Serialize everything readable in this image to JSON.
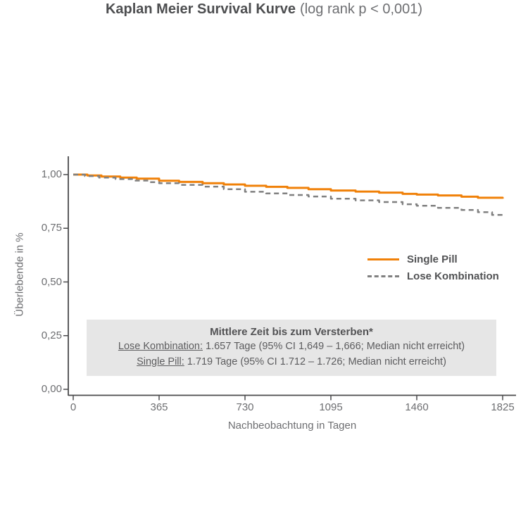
{
  "title": {
    "main": "Kaplan Meier Survival Kurve",
    "sub": "(log rank p < 0,001)"
  },
  "axes": {
    "x": {
      "label": "Nachbeobachtung in Tagen",
      "ticks": [
        "0",
        "365",
        "730",
        "1095",
        "1460",
        "1825"
      ]
    },
    "y": {
      "label": "Überlebende in %",
      "ticks": [
        "1,00",
        "0,75",
        "0,50",
        "0,25",
        "0,00"
      ]
    }
  },
  "legend": {
    "items": [
      {
        "label": "Single Pill",
        "style": "solid",
        "color": "#f08109"
      },
      {
        "label": "Lose Kombination",
        "style": "dashed",
        "color": "#808080"
      }
    ]
  },
  "annotation": {
    "title": "Mittlere Zeit bis zum Versterben*",
    "rows": [
      {
        "label": "Lose Kombination:",
        "text": " 1.657 Tage (95% CI 1,649 – 1,666; Median nicht erreicht)"
      },
      {
        "label": "Single Pill:",
        "text": " 1.719 Tage (95% CI 1.712 – 1.726; Median nicht erreicht)"
      }
    ],
    "background": "#e6e6e6"
  },
  "colors": {
    "axis": "#4b4b4d",
    "tick_text": "#6d6e71",
    "title_main": "#4d4e50",
    "title_sub": "#6d6e71",
    "legend_text": "#515254",
    "single_pill": "#f08109",
    "lose_kombination": "#808080",
    "note_background": "#e6e6e6",
    "background": "#ffffff"
  },
  "chart_data": {
    "type": "line",
    "subtype": "kaplan-meier-step",
    "title": "Kaplan Meier Survival Kurve (log rank p < 0,001)",
    "xlabel": "Nachbeobachtung in Tagen",
    "ylabel": "Überlebende in %",
    "xlim": [
      0,
      1825
    ],
    "ylim": [
      0,
      1
    ],
    "x_ticks": [
      0,
      365,
      730,
      1095,
      1460,
      1825
    ],
    "y_ticks": [
      1.0,
      0.75,
      0.5,
      0.25,
      0.0
    ],
    "grid": false,
    "legend_position": "right-center",
    "series": [
      {
        "name": "Single Pill",
        "line_style": "solid",
        "color": "#f08109",
        "x": [
          0,
          60,
          120,
          200,
          270,
          365,
          450,
          550,
          640,
          730,
          820,
          910,
          1000,
          1095,
          1200,
          1300,
          1400,
          1460,
          1550,
          1650,
          1720,
          1825
        ],
        "y": [
          1.0,
          0.996,
          0.991,
          0.986,
          0.981,
          0.971,
          0.966,
          0.96,
          0.954,
          0.948,
          0.943,
          0.938,
          0.932,
          0.926,
          0.921,
          0.916,
          0.91,
          0.907,
          0.903,
          0.897,
          0.892,
          0.888
        ]
      },
      {
        "name": "Lose Kombination",
        "line_style": "dashed",
        "color": "#808080",
        "x": [
          0,
          50,
          110,
          180,
          250,
          320,
          365,
          450,
          550,
          640,
          730,
          820,
          910,
          1000,
          1095,
          1200,
          1300,
          1400,
          1460,
          1550,
          1650,
          1720,
          1780,
          1825
        ],
        "y": [
          1.0,
          0.993,
          0.986,
          0.979,
          0.972,
          0.965,
          0.96,
          0.952,
          0.944,
          0.932,
          0.92,
          0.912,
          0.905,
          0.898,
          0.888,
          0.88,
          0.872,
          0.862,
          0.855,
          0.845,
          0.835,
          0.825,
          0.812,
          0.8
        ]
      }
    ],
    "annotation_box": {
      "title": "Mittlere Zeit bis zum Versterben*",
      "lines": [
        "Lose Kombination: 1.657 Tage (95% CI 1,649 – 1,666; Median nicht erreicht)",
        "Single Pill: 1.719 Tage (95% CI 1.712 – 1.726; Median nicht erreicht)"
      ]
    }
  }
}
